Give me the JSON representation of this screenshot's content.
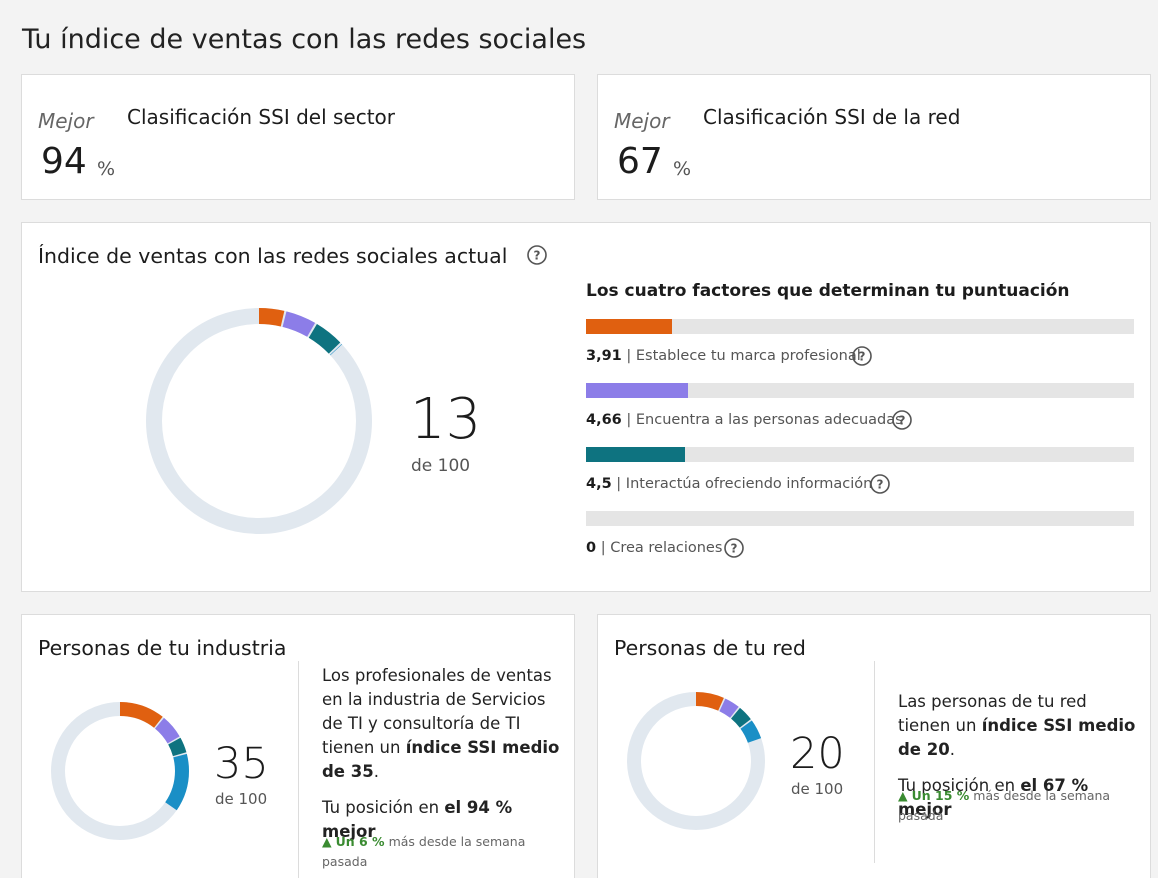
{
  "page": {
    "title": "Tu índice de ventas con las redes sociales"
  },
  "industry_rank": {
    "better_label": "Mejor",
    "title": "Clasificación SSI del sector",
    "value": "94",
    "unit": "%"
  },
  "network_rank": {
    "better_label": "Mejor",
    "title": "Clasificación SSI de la red",
    "value": "67",
    "unit": "%"
  },
  "current_ssi": {
    "title": "Índice de ventas con las redes sociales actual",
    "score": "13",
    "of_label": "de 100",
    "factors_title": "Los cuatro factores que determinan tu puntuación",
    "factors": [
      {
        "value": "3,91",
        "separator": "|",
        "label": "Establece tu marca profesional",
        "score": 3.91,
        "max": 25,
        "color": "#e06010"
      },
      {
        "value": "4,66",
        "separator": "|",
        "label": "Encuentra a las personas adecuadas",
        "score": 4.66,
        "max": 25,
        "color": "#8c7de8"
      },
      {
        "value": "4,5",
        "separator": "|",
        "label": "Interactúa ofreciendo información",
        "score": 4.5,
        "max": 25,
        "color": "#0e7380"
      },
      {
        "value": "0",
        "separator": "|",
        "label": "Crea relaciones",
        "score": 0,
        "max": 25,
        "color": "#1a8fc6"
      }
    ]
  },
  "industry_people": {
    "title": "Personas de tu industria",
    "score": "35",
    "of_label": "de 100",
    "segments": [
      {
        "value": 11,
        "color": "#e06010"
      },
      {
        "value": 6,
        "color": "#8c7de8"
      },
      {
        "value": 4,
        "color": "#0e7380"
      },
      {
        "value": 14,
        "color": "#1a8fc6"
      }
    ],
    "desc_1": "Los profesionales de ventas en la industria de Servicios de TI y consultoría de TI tienen un ",
    "desc_1_bold": "índice SSI medio de 35",
    "desc_1_end": ".",
    "position_prefix": "Tu posición en ",
    "position_bold": "el 94 % mejor",
    "delta_arrow": "▲",
    "delta_highlight": "Un 6 %",
    "delta_rest": "más desde la semana pasada"
  },
  "network_people": {
    "title": "Personas de tu red",
    "score": "20",
    "of_label": "de 100",
    "segments": [
      {
        "value": 7,
        "color": "#e06010"
      },
      {
        "value": 4,
        "color": "#8c7de8"
      },
      {
        "value": 4,
        "color": "#0e7380"
      },
      {
        "value": 5,
        "color": "#1a8fc6"
      }
    ],
    "desc_1": "Las personas de tu red tienen un ",
    "desc_1_bold": "índice SSI medio de 20",
    "desc_1_end": ".",
    "position_prefix": "Tu posición en ",
    "position_bold": "el 67 % mejor",
    "delta_arrow": "▲",
    "delta_highlight": "Un 15 %",
    "delta_rest": "más desde la semana pasada"
  }
}
